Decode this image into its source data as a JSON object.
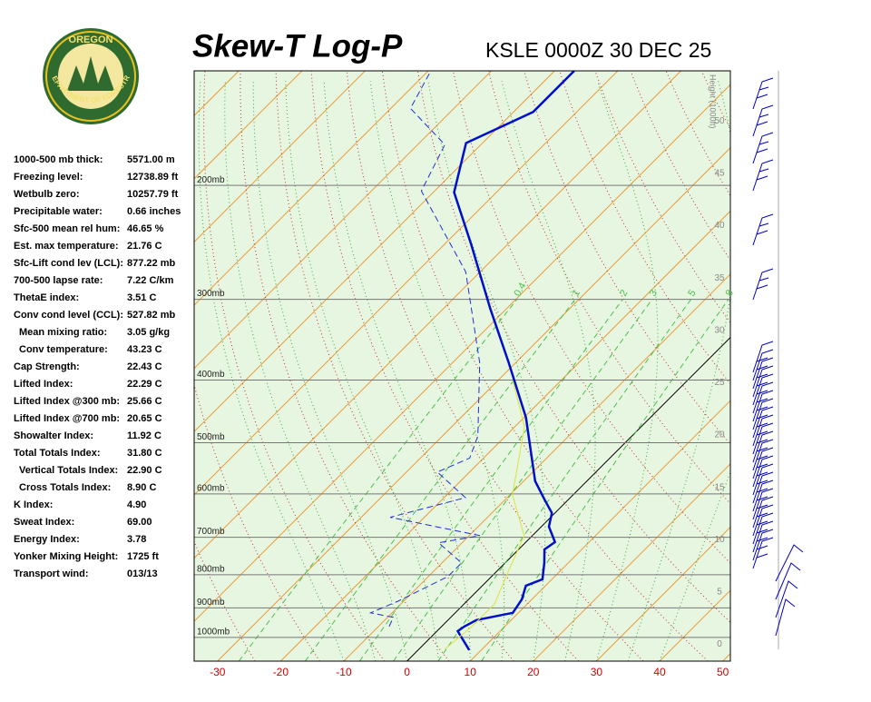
{
  "logo": {
    "top": "OREGON",
    "bottom": "DEPARTMENT OF FORESTRY"
  },
  "indices": [
    [
      "1000-500 mb thick:",
      "5571.00 m"
    ],
    [
      "Freezing level:",
      "12738.89 ft"
    ],
    [
      "Wetbulb zero:",
      "10257.79 ft"
    ],
    [
      "Precipitable water:",
      "0.66 inches"
    ],
    [
      "Sfc-500 mean rel hum:",
      "46.65 %"
    ],
    [
      "Est. max temperature:",
      "21.76 C"
    ],
    [
      "Sfc-Lift cond lev (LCL):",
      "877.22 mb"
    ],
    [
      "700-500 lapse rate:",
      "7.22 C/km"
    ],
    [
      "ThetaE index:",
      "3.51 C"
    ],
    [
      "Conv cond level (CCL):",
      "527.82 mb"
    ],
    [
      "Mean mixing ratio:",
      "3.05 g/kg"
    ],
    [
      "Conv temperature:",
      "43.23 C"
    ],
    [
      "Cap Strength:",
      "22.43 C"
    ],
    [
      "Lifted Index:",
      "22.29 C"
    ],
    [
      "Lifted Index @300 mb:",
      "25.66 C"
    ],
    [
      "Lifted Index @700 mb:",
      "20.65 C"
    ],
    [
      "Showalter Index:",
      "11.92 C"
    ],
    [
      "Total Totals Index:",
      "31.80 C"
    ],
    [
      "Vertical Totals Index:",
      "22.90 C"
    ],
    [
      "Cross Totals Index:",
      "8.90 C"
    ],
    [
      "K Index:",
      "4.90"
    ],
    [
      "Sweat Index:",
      "69.00"
    ],
    [
      "Energy Index:",
      "3.78"
    ],
    [
      "Yonker Mixing Height:",
      "1725 ft"
    ],
    [
      "Transport wind:",
      "013/13"
    ]
  ],
  "chart_data": {
    "type": "skewt",
    "title": "Skew-T Log-P",
    "subtitle": "KSLE 0000Z 30 DEC 25",
    "y2_label": "Height (1000ft)",
    "xlim": [
      -33.7,
      51.2
    ],
    "xticks": [
      -30,
      -20,
      -10,
      0,
      10,
      20,
      30,
      40,
      50
    ],
    "ylim": [
      1088,
      133
    ],
    "log_y": true,
    "yticks": [
      {
        "value": 1000,
        "label": "1000mb"
      },
      {
        "value": 900,
        "label": "900mb"
      },
      {
        "value": 800,
        "label": "800mb"
      },
      {
        "value": 700,
        "label": "700mb"
      },
      {
        "value": 600,
        "label": "600mb"
      },
      {
        "value": 500,
        "label": "500mb"
      },
      {
        "value": 400,
        "label": "400mb"
      },
      {
        "value": 300,
        "label": "300mb"
      },
      {
        "value": 200,
        "label": "200mb"
      }
    ],
    "y2lim": [
      -1.6,
      54.8
    ],
    "y2ticks": [
      0,
      5,
      10,
      15,
      20,
      25,
      30,
      35,
      40,
      45,
      50
    ],
    "mixing_ratios": [
      0.4,
      1,
      2,
      3,
      5,
      8
    ],
    "series": [
      {
        "color": "#0010c8",
        "dash": false,
        "pressure": [
          1046,
          978,
          962,
          940,
          916,
          873,
          832,
          813,
          767,
          731,
          712,
          674,
          642,
          611,
          573,
          457,
          376,
          310,
          247,
          205,
          172,
          154,
          133
        ],
        "values": [
          8.1,
          3.3,
          3.6,
          4.5,
          9.1,
          8.4,
          6.9,
          8.5,
          6.2,
          4.1,
          4.6,
          1.2,
          -0.5,
          -3.9,
          -8.2,
          -19.7,
          -31.1,
          -42.6,
          -55.7,
          -66.7,
          -72.6,
          -66.9,
          -66.9
        ]
      },
      {
        "color": "#2030d0",
        "dash": true,
        "pressure": [
          962,
          931,
          916,
          879,
          805,
          767,
          714,
          696,
          652,
          608,
          555,
          528,
          488,
          376,
          272,
          204,
          173,
          152,
          133
        ],
        "values": [
          -8.3,
          -9.1,
          -13.4,
          -10.9,
          -6.9,
          -6.9,
          -13.7,
          -8.3,
          -25.4,
          -16.6,
          -25.1,
          -22.2,
          -24.4,
          -35.7,
          -52.3,
          -72.1,
          -75.7,
          -86.9,
          -89.6
        ]
      },
      {
        "color": "#e0e040",
        "dash": false,
        "pressure": [
          1043,
          962,
          887,
          792,
          696,
          602,
          472,
          401
        ],
        "values": [
          4.1,
          4.8,
          4.8,
          1.9,
          -1.3,
          -9.6,
          -18.5,
          -27.6
        ]
      }
    ]
  }
}
